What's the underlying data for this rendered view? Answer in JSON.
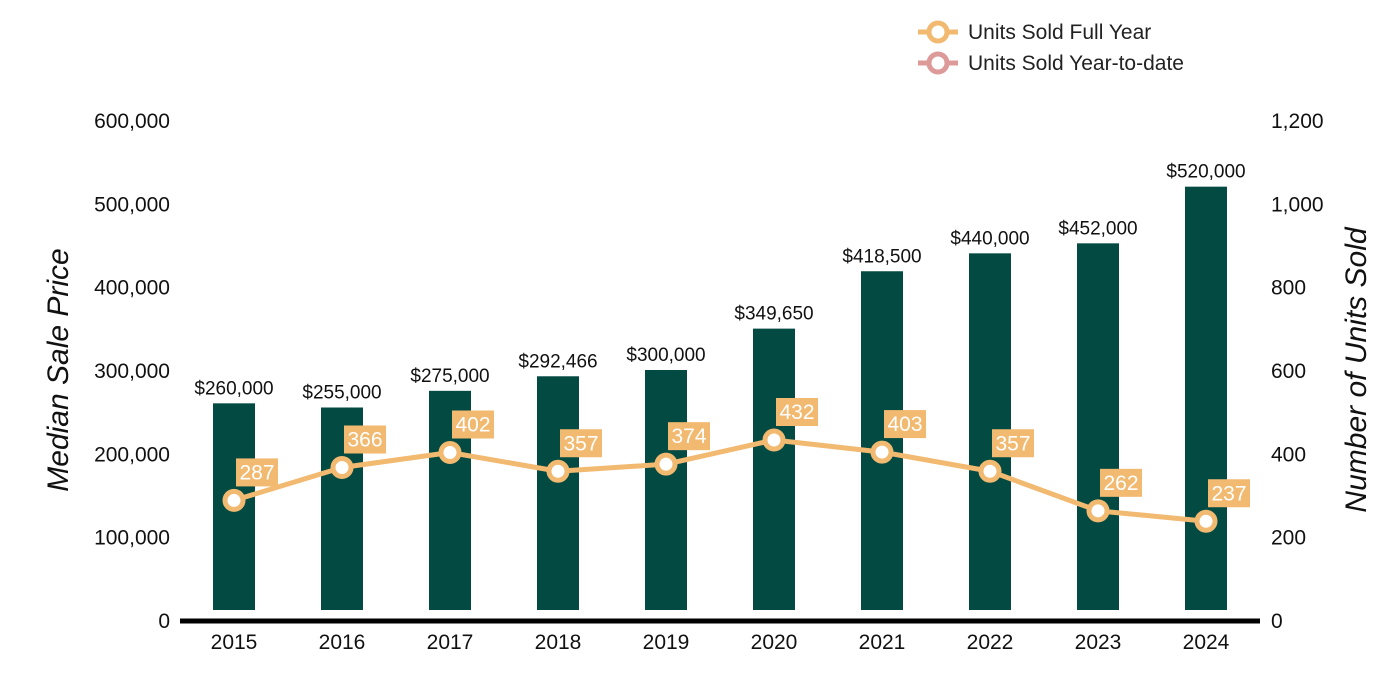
{
  "chart_data": {
    "type": "bar",
    "categories": [
      "2015",
      "2016",
      "2017",
      "2018",
      "2019",
      "2020",
      "2021",
      "2022",
      "2023",
      "2024"
    ],
    "series": [
      {
        "name": "Median Sale Price",
        "axis": "left",
        "type": "bar",
        "values": [
          260000,
          255000,
          275000,
          292466,
          300000,
          349650,
          418500,
          440000,
          452000,
          520000
        ],
        "labels": [
          "$260,000",
          "$255,000",
          "$275,000",
          "$292,466",
          "$300,000",
          "$349,650",
          "$418,500",
          "$440,000",
          "$452,000",
          "$520,000"
        ],
        "color": "#034a42"
      },
      {
        "name": "Units Sold Full Year",
        "axis": "right",
        "type": "line",
        "values": [
          287,
          366,
          402,
          357,
          374,
          432,
          403,
          357,
          262,
          237
        ],
        "labels": [
          "287",
          "366",
          "402",
          "357",
          "374",
          "432",
          "403",
          "357",
          "262",
          "237"
        ],
        "color": "#f2b970"
      }
    ],
    "legend": {
      "position": "top-right",
      "entries": [
        {
          "label": "Units Sold Full Year",
          "color": "#f2b970"
        },
        {
          "label": "Units Sold Year-to-date",
          "color": "#dc9a98"
        }
      ]
    },
    "y_left": {
      "label": "Median Sale Price",
      "ylim": [
        0,
        600000
      ],
      "ticks": [
        0,
        100000,
        200000,
        300000,
        400000,
        500000,
        600000
      ],
      "tick_labels": [
        "0",
        "100,000",
        "200,000",
        "300,000",
        "400,000",
        "500,000",
        "600,000"
      ]
    },
    "y_right": {
      "label": "Number of Units Sold",
      "ylim": [
        0,
        1200
      ],
      "ticks": [
        0,
        200,
        400,
        600,
        800,
        1000,
        1200
      ],
      "tick_labels": [
        "0",
        "200",
        "400",
        "600",
        "800",
        "1,000",
        "1,200"
      ]
    },
    "grid": false
  }
}
